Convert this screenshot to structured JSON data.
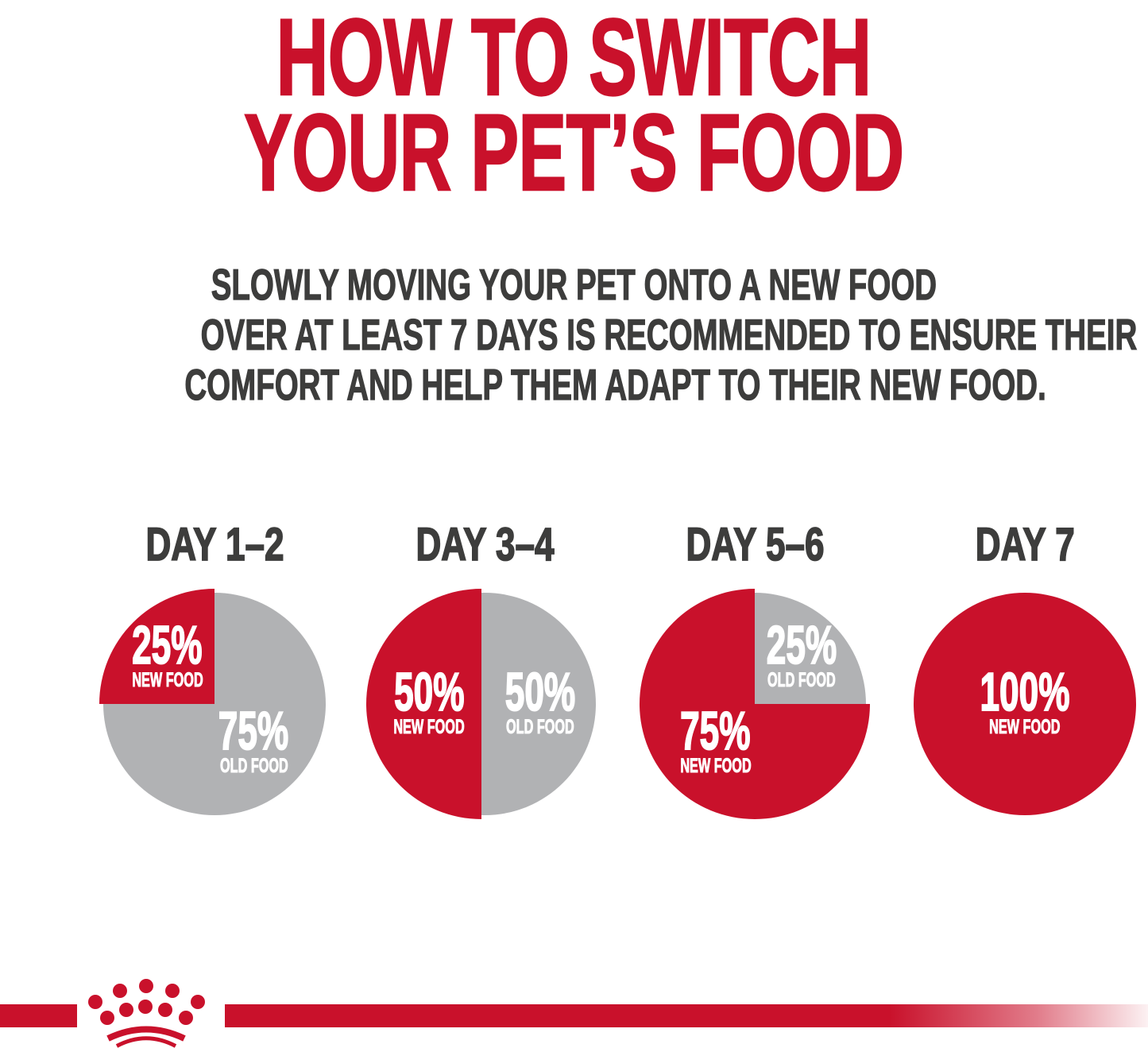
{
  "page": {
    "title_line1": "HOW TO SWITCH",
    "title_line2": "YOUR PET’S FOOD",
    "subtitle_lines": [
      "SLOWLY MOVING YOUR PET ONTO A NEW FOOD",
      "OVER AT LEAST 7 DAYS IS RECOMMENDED TO ENSURE THEIR",
      "COMFORT AND HELP THEM ADAPT TO THEIR NEW FOOD."
    ]
  },
  "colors": {
    "brand_red": "#c9112b",
    "pie_gray": "#b1b2b4",
    "heading_gray": "#3d3d3c",
    "label_white": "#ffffff"
  },
  "chart_data": [
    {
      "type": "pie",
      "title": "DAY 1–2",
      "legend_position": "none",
      "slices": [
        {
          "label": "NEW FOOD",
          "value": 25,
          "pct_text": "25%",
          "color": "#c9112b"
        },
        {
          "label": "OLD FOOD",
          "value": 75,
          "pct_text": "75%",
          "color": "#b1b2b4"
        }
      ]
    },
    {
      "type": "pie",
      "title": "DAY 3–4",
      "legend_position": "none",
      "slices": [
        {
          "label": "NEW FOOD",
          "value": 50,
          "pct_text": "50%",
          "color": "#c9112b"
        },
        {
          "label": "OLD FOOD",
          "value": 50,
          "pct_text": "50%",
          "color": "#b1b2b4"
        }
      ]
    },
    {
      "type": "pie",
      "title": "DAY 5–6",
      "legend_position": "none",
      "slices": [
        {
          "label": "NEW FOOD",
          "value": 75,
          "pct_text": "75%",
          "color": "#c9112b"
        },
        {
          "label": "OLD FOOD",
          "value": 25,
          "pct_text": "25%",
          "color": "#b1b2b4"
        }
      ]
    },
    {
      "type": "pie",
      "title": "DAY 7",
      "legend_position": "none",
      "slices": [
        {
          "label": "NEW FOOD",
          "value": 100,
          "pct_text": "100%",
          "color": "#c9112b"
        }
      ]
    }
  ],
  "footer": {
    "logo": "royal-canin-crown"
  }
}
